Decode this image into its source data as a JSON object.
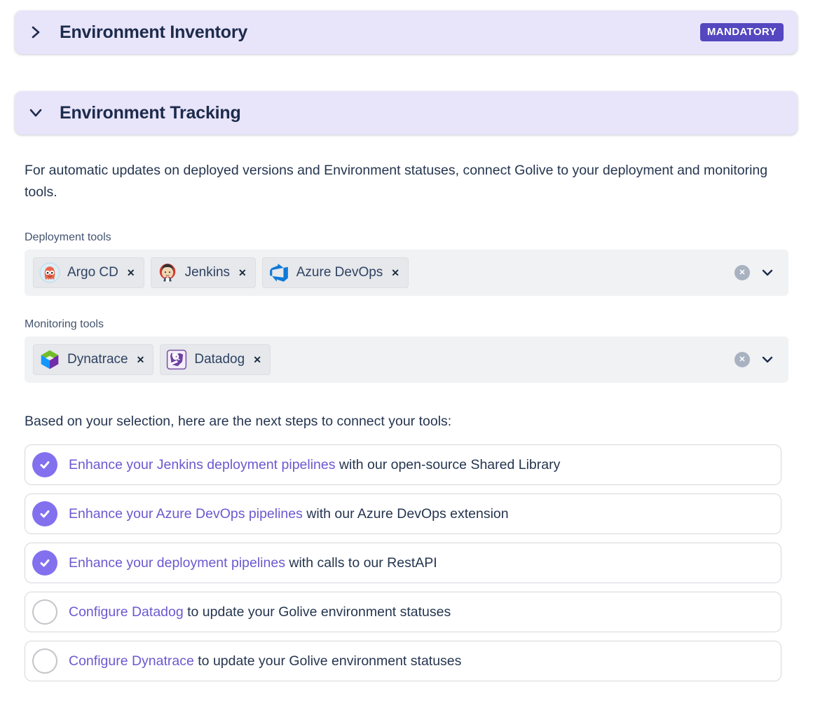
{
  "colors": {
    "header-bg": "#e8e4fa",
    "heading-text": "#1c2b4b",
    "badge-bg": "#5547bf",
    "link": "#6b59d0",
    "check-fill": "#8270ef",
    "field-bg": "#f1f2f4",
    "tag-bg": "#e6e8eb",
    "body-text": "#25354f"
  },
  "inventory_section": {
    "title": "Environment Inventory",
    "badge": "MANDATORY",
    "state": "collapsed"
  },
  "tracking_section": {
    "title": "Environment Tracking",
    "state": "expanded",
    "intro": "For automatic updates on deployed versions and Environment statuses, connect Golive to your deployment and monitoring tools.",
    "deployment_tools": {
      "label": "Deployment tools",
      "selected": [
        {
          "name": "Argo CD",
          "icon": "argo-cd-icon"
        },
        {
          "name": "Jenkins",
          "icon": "jenkins-icon"
        },
        {
          "name": "Azure DevOps",
          "icon": "azure-devops-icon"
        }
      ]
    },
    "monitoring_tools": {
      "label": "Monitoring tools",
      "selected": [
        {
          "name": "Dynatrace",
          "icon": "dynatrace-icon"
        },
        {
          "name": "Datadog",
          "icon": "datadog-icon"
        }
      ]
    },
    "tag_remove_glyph": "✕",
    "clear_glyph": "✕",
    "next_steps_intro": "Based on your selection, here are the next steps to connect your tools:",
    "steps": [
      {
        "checked": true,
        "link": "Enhance your Jenkins deployment pipelines",
        "rest": "with our open-source Shared Library"
      },
      {
        "checked": true,
        "link": "Enhance your Azure DevOps pipelines",
        "rest": "with our Azure DevOps extension"
      },
      {
        "checked": true,
        "link": "Enhance your deployment pipelines",
        "rest": "with calls to our RestAPI"
      },
      {
        "checked": false,
        "link": "Configure Datadog",
        "rest": "to update your Golive environment statuses"
      },
      {
        "checked": false,
        "link": "Configure Dynatrace",
        "rest": "to update your Golive environment statuses"
      }
    ]
  }
}
